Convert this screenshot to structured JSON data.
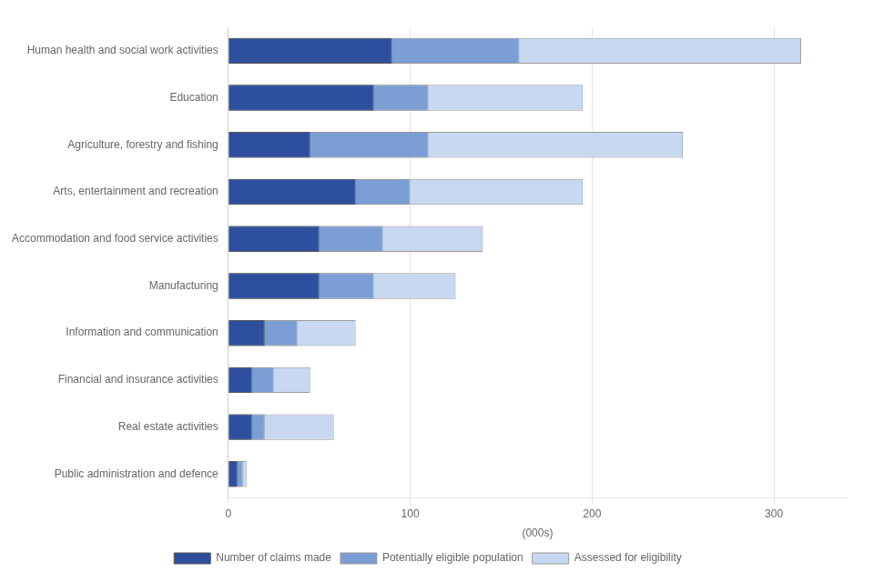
{
  "chart_data": {
    "type": "bar",
    "orientation": "horizontal",
    "categories": [
      "Human health and social work activities",
      "Education",
      "Agriculture, forestry and fishing",
      "Arts, entertainment and recreation",
      "Accommodation and food service activities",
      "Manufacturing",
      "Information and communication",
      "Financial and insurance activities",
      "Real estate activities",
      "Public administration and defence"
    ],
    "series": [
      {
        "name": "Number of claims made",
        "color": "#2e4f9e",
        "values": [
          90,
          80,
          45,
          70,
          50,
          50,
          20,
          13,
          13,
          5
        ]
      },
      {
        "name": "Potentially eligible population",
        "color": "#7b9ed4",
        "values": [
          160,
          110,
          110,
          100,
          85,
          80,
          38,
          25,
          20,
          8
        ]
      },
      {
        "name": "Assessed for eligibility",
        "color": "#c8d8f0",
        "values": [
          315,
          195,
          250,
          195,
          140,
          125,
          70,
          45,
          58,
          10
        ]
      }
    ],
    "xlabel": "(000s)",
    "xlim": [
      0,
      340
    ],
    "xticks": [
      0,
      100,
      200,
      300
    ],
    "grid": true,
    "legend": "bottom"
  }
}
